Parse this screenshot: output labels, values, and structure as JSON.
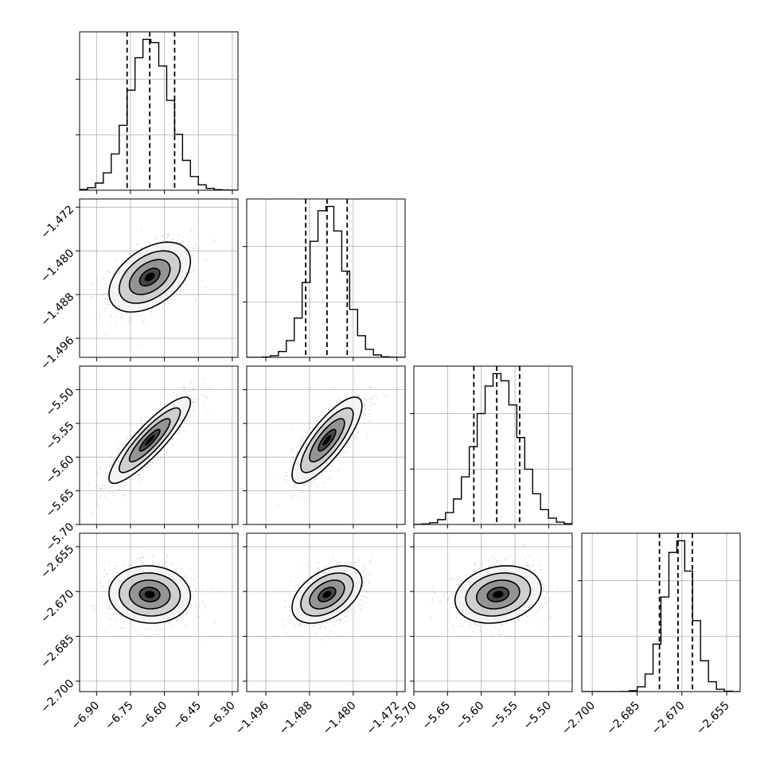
{
  "chart_data": {
    "type": "corner",
    "parameters": [
      {
        "range": [
          -6.975,
          -6.275
        ],
        "ticks": [
          -6.9,
          -6.75,
          -6.6,
          -6.45,
          -6.3
        ],
        "tick_labels": [
          "−6.90",
          "−6.75",
          "−6.60",
          "−6.45",
          "−6.30"
        ],
        "mean": -6.665,
        "sigma": 0.09,
        "quantiles": [
          -6.765,
          -6.665,
          -6.555
        ]
      },
      {
        "range": [
          -1.4995,
          -1.4705
        ],
        "ticks": [
          -1.496,
          -1.488,
          -1.48,
          -1.472
        ],
        "tick_labels": [
          "−1.496",
          "−1.488",
          "−1.480",
          "−1.472"
        ],
        "mean": -1.4848,
        "sigma": 0.0032,
        "quantiles": [
          -1.4887,
          -1.4848,
          -1.4811
        ]
      },
      {
        "range": [
          -5.7,
          -5.465
        ],
        "ticks": [
          -5.7,
          -5.65,
          -5.6,
          -5.55,
          -5.5
        ],
        "tick_labels": [
          "−5.70",
          "−5.65",
          "−5.60",
          "−5.55",
          "−5.50"
        ],
        "mean": -5.575,
        "sigma": 0.032,
        "quantiles": [
          -5.611,
          -5.577,
          -5.543
        ]
      },
      {
        "range": [
          -2.7035,
          -2.6505
        ],
        "ticks": [
          -2.7,
          -2.685,
          -2.67,
          -2.655
        ],
        "tick_labels": [
          "−2.700",
          "−2.685",
          "−2.670",
          "−2.655"
        ],
        "mean": -2.671,
        "sigma": 0.0048,
        "quantiles": [
          -2.6775,
          -2.6713,
          -2.6665
        ]
      }
    ],
    "correlations": [
      {
        "pair": [
          0,
          1
        ],
        "rho": 0.45
      },
      {
        "pair": [
          0,
          2
        ],
        "rho": 0.88
      },
      {
        "pair": [
          1,
          2
        ],
        "rho": 0.8
      },
      {
        "pair": [
          0,
          3
        ],
        "rho": -0.05
      },
      {
        "pair": [
          1,
          3
        ],
        "rho": 0.45
      },
      {
        "pair": [
          2,
          3
        ],
        "rho": 0.2
      }
    ],
    "contour_levels_sigma": [
      0.5,
      1.0,
      1.5,
      2.0
    ],
    "histogram_bins": 20,
    "grid": true,
    "colors": {
      "scatter": "#9a9a9a",
      "line": "#000000",
      "grid": "#b0b0b0",
      "density_max": "#000000"
    }
  }
}
